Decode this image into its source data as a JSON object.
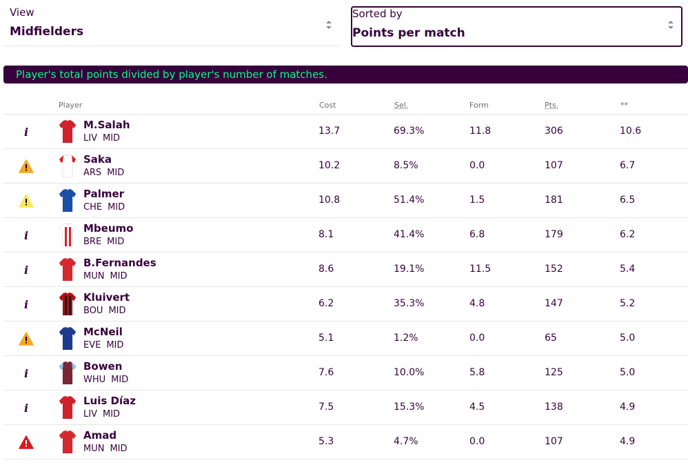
{
  "view": {
    "label": "View",
    "value": "Midfielders"
  },
  "sort": {
    "label": "Sorted by",
    "value": "Points per match"
  },
  "banner": "Player's total points divided by player's number of matches.",
  "columns": {
    "player": "Player",
    "cost": "Cost",
    "sel": "Sel.",
    "form": "Form",
    "pts": "Pts.",
    "stat": "**"
  },
  "colors": {
    "primary": "#37003c",
    "accent": "#00ff87",
    "warning_orange": "#f5a623",
    "warning_yellow": "#ffe65b",
    "warning_red": "#d81920"
  },
  "players": [
    {
      "name": "M.Salah",
      "team": "LIV",
      "pos": "MID",
      "cost": "13.7",
      "sel": "69.3%",
      "form": "11.8",
      "pts": "306",
      "stat": "10.6",
      "status": "info-icon",
      "kit": "liverpool-kit"
    },
    {
      "name": "Saka",
      "team": "ARS",
      "pos": "MID",
      "cost": "10.2",
      "sel": "8.5%",
      "form": "0.0",
      "pts": "107",
      "stat": "6.7",
      "status": "warning-orange-icon",
      "kit": "arsenal-kit"
    },
    {
      "name": "Palmer",
      "team": "CHE",
      "pos": "MID",
      "cost": "10.8",
      "sel": "51.4%",
      "form": "1.5",
      "pts": "181",
      "stat": "6.5",
      "status": "warning-yellow-icon",
      "kit": "chelsea-kit"
    },
    {
      "name": "Mbeumo",
      "team": "BRE",
      "pos": "MID",
      "cost": "8.1",
      "sel": "41.4%",
      "form": "6.8",
      "pts": "179",
      "stat": "6.2",
      "status": "info-icon",
      "kit": "brentford-kit"
    },
    {
      "name": "B.Fernandes",
      "team": "MUN",
      "pos": "MID",
      "cost": "8.6",
      "sel": "19.1%",
      "form": "11.5",
      "pts": "152",
      "stat": "5.4",
      "status": "info-icon",
      "kit": "man-utd-kit"
    },
    {
      "name": "Kluivert",
      "team": "BOU",
      "pos": "MID",
      "cost": "6.2",
      "sel": "35.3%",
      "form": "4.8",
      "pts": "147",
      "stat": "5.2",
      "status": "info-icon",
      "kit": "bournemouth-kit"
    },
    {
      "name": "McNeil",
      "team": "EVE",
      "pos": "MID",
      "cost": "5.1",
      "sel": "1.2%",
      "form": "0.0",
      "pts": "65",
      "stat": "5.0",
      "status": "warning-orange-icon",
      "kit": "everton-kit"
    },
    {
      "name": "Bowen",
      "team": "WHU",
      "pos": "MID",
      "cost": "7.6",
      "sel": "10.0%",
      "form": "5.8",
      "pts": "125",
      "stat": "5.0",
      "status": "info-icon",
      "kit": "west-ham-kit"
    },
    {
      "name": "Luis Díaz",
      "team": "LIV",
      "pos": "MID",
      "cost": "7.5",
      "sel": "15.3%",
      "form": "4.5",
      "pts": "138",
      "stat": "4.9",
      "status": "info-icon",
      "kit": "liverpool-kit"
    },
    {
      "name": "Amad",
      "team": "MUN",
      "pos": "MID",
      "cost": "5.3",
      "sel": "4.7%",
      "form": "0.0",
      "pts": "107",
      "stat": "4.9",
      "status": "warning-red-icon",
      "kit": "man-utd-kit"
    }
  ]
}
